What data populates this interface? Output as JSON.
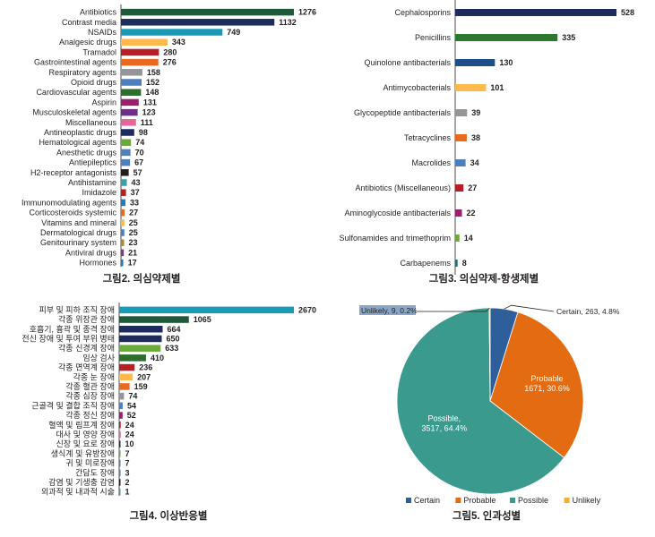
{
  "chart_data": [
    {
      "type": "bar",
      "orientation": "horizontal",
      "title": "그림2. 의심약제별",
      "categories": [
        "Antibiotics",
        "Contrast media",
        "NSAIDs",
        "Analgesic drugs",
        "Tramadol",
        "Gastrointestinal agents",
        "Respiratory agents",
        "Opioid drugs",
        "Cardiovascular agents",
        "Aspirin",
        "Musculoskeletal agents",
        "Miscellaneous",
        "Antineoplastic drugs",
        "Hematological agents",
        "Anesthetic drugs",
        "Antiepileptics",
        "H2-receptor antagonists",
        "Antihistamine",
        "Imidazole",
        "Immunomodulating agents",
        "Corticosteroids systemic",
        "Vitamins and mineral",
        "Dermatological drugs",
        "Genitourinary system",
        "Antiviral drugs",
        "Hormones"
      ],
      "values": [
        1276,
        1132,
        749,
        343,
        280,
        276,
        158,
        152,
        148,
        131,
        123,
        111,
        98,
        74,
        70,
        67,
        57,
        43,
        37,
        33,
        27,
        25,
        25,
        23,
        21,
        17
      ],
      "colors": [
        "#1e5a3a",
        "#1d2c5e",
        "#1a9bb5",
        "#fdb94a",
        "#b81f25",
        "#e86a1f",
        "#939598",
        "#4d7fbd",
        "#2d6e2e",
        "#9b1f6b",
        "#6a2f87",
        "#e7669a",
        "#1d2c5e",
        "#6aaa3a",
        "#4d7fbd",
        "#4d7fbd",
        "#231f20",
        "#3aa0a0",
        "#b81f25",
        "#1d7fc1",
        "#e86a1f",
        "#fdb94a",
        "#4d7fbd",
        "#b08a2e",
        "#7a3b8c",
        "#1d7fc1"
      ]
    },
    {
      "type": "bar",
      "orientation": "horizontal",
      "title": "그림3. 의심약제-항생제별",
      "categories": [
        "Cephalosporins",
        "Penicillins",
        "Quinolone antibacterials",
        "Antimycobacterials",
        "Glycopeptide antibacterials",
        "Tetracyclines",
        "Macrolides",
        "Antibiotics (Miscellaneous)",
        "Aminoglycoside antibacterials",
        "Sulfonamides and trimethoprim",
        "Carbapenems"
      ],
      "values": [
        528,
        335,
        130,
        101,
        39,
        38,
        34,
        27,
        22,
        14,
        8
      ],
      "colors": [
        "#1d2c5e",
        "#2d7a2e",
        "#1d4e89",
        "#fdb94a",
        "#939598",
        "#e86a1f",
        "#4d7fbd",
        "#b81f25",
        "#9b1f6b",
        "#6aaa3a",
        "#2d6e6e"
      ]
    },
    {
      "type": "bar",
      "orientation": "horizontal",
      "title": "그림4. 이상반응별",
      "categories": [
        "피부 및 피하 조직 장애",
        "각종 위장관 장애",
        "호흡기, 흉곽 및 종격 장애",
        "전신 장애 및 투여 부위 병태",
        "각종 신경계 장애",
        "임상 검사",
        "각종 면역계 장애",
        "각종 눈 장애",
        "각종 혈관 장애",
        "각종 심장 장애",
        "근골격 및 결합 조직 장애",
        "각종 정신 장애",
        "혈액 및 림프계 장애",
        "대사 및 영양 장애",
        "신장 및 요로 장애",
        "생식계 및 유방장애",
        "귀 및 미로장애",
        "간담도 장애",
        "감염 및 기생충 감염",
        "외과적 및 내과적 시술"
      ],
      "values": [
        2670,
        1065,
        664,
        650,
        633,
        410,
        236,
        207,
        159,
        74,
        54,
        52,
        24,
        24,
        10,
        7,
        7,
        3,
        2,
        1
      ],
      "colors": [
        "#1a9bb5",
        "#1e5a3a",
        "#1d2c5e",
        "#1d2c5e",
        "#6aaa3a",
        "#2d6e2e",
        "#b81f25",
        "#fdb94a",
        "#e86a1f",
        "#939598",
        "#4d7fbd",
        "#9b1f6b",
        "#b81f25",
        "#e7669a",
        "#1d2c5e",
        "#6aaa3a",
        "#4d7fbd",
        "#4d7fbd",
        "#231f20",
        "#3aa0a0"
      ]
    },
    {
      "type": "pie",
      "title": "그림5. 인과성별",
      "slices": [
        {
          "name": "Certain",
          "value": 263,
          "percent": 4.8,
          "color": "#2e5f9a",
          "label": "Certain, 263, 4.8%"
        },
        {
          "name": "Probable",
          "value": 1671,
          "percent": 30.6,
          "color": "#e36c12",
          "label_name": "Probable",
          "label_value": "1671, 30.6%"
        },
        {
          "name": "Possible",
          "value": 3517,
          "percent": 64.4,
          "color": "#3a9a8d",
          "label_name": "Possible,",
          "label_value": "3517, 64.4%"
        },
        {
          "name": "Unlikely",
          "value": 9,
          "percent": 0.2,
          "color": "#f2b02c",
          "label": "Unlikely, 9, 0.2%"
        }
      ],
      "legend": [
        "Certain",
        "Probable",
        "Possible",
        "Unlikely"
      ]
    }
  ]
}
